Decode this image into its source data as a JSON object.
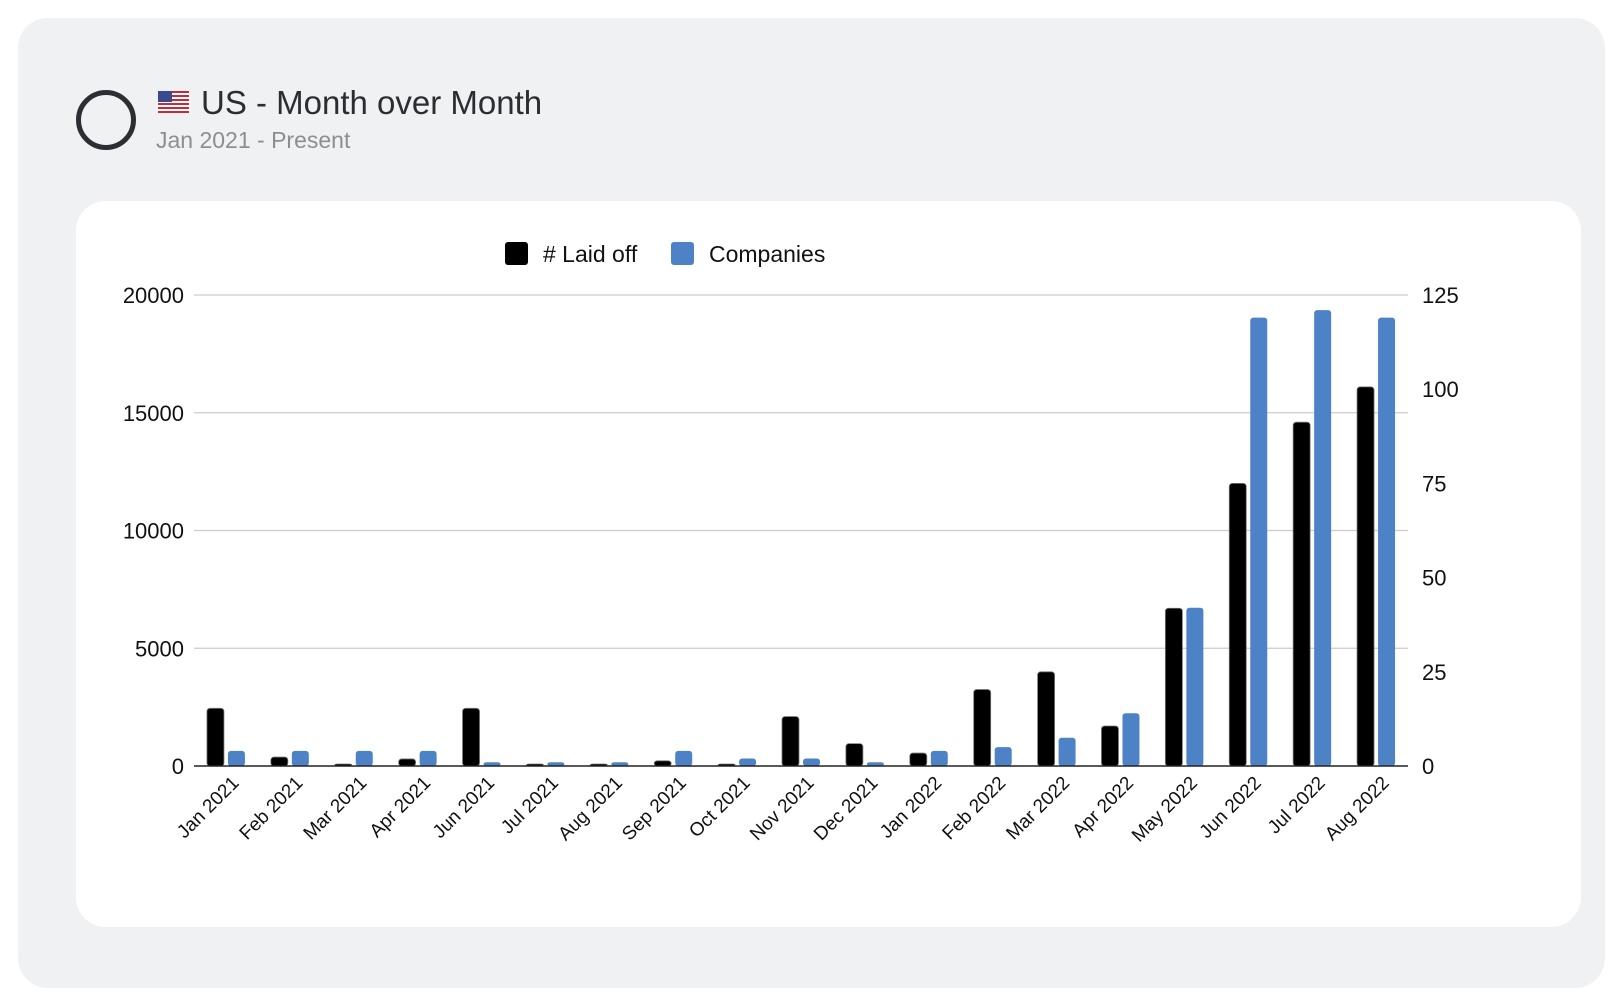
{
  "header": {
    "title": "US - Month over Month",
    "subtitle": "Jan 2021 - Present",
    "flag_icon": "us-flag-icon",
    "status_icon": "circle-outline-icon"
  },
  "colors": {
    "laid_off": "#000000",
    "companies": "#4e82c6",
    "grid": "#cccccc",
    "card_bg": "#f0f1f3"
  },
  "chart_data": {
    "type": "bar",
    "categories": [
      "Jan 2021",
      "Feb 2021",
      "Mar 2021",
      "Apr 2021",
      "Jun 2021",
      "Jul 2021",
      "Aug 2021",
      "Sep 2021",
      "Oct 2021",
      "Nov 2021",
      "Dec 2021",
      "Jan 2022",
      "Feb 2022",
      "Mar 2022",
      "Apr 2022",
      "May 2022",
      "Jun 2022",
      "Jul 2022",
      "Aug 2022"
    ],
    "series": [
      {
        "name": "# Laid off",
        "axis": "left",
        "values": [
          2450,
          380,
          60,
          300,
          2450,
          80,
          60,
          220,
          80,
          2100,
          950,
          550,
          3250,
          4000,
          1700,
          6700,
          12000,
          14600,
          16100
        ]
      },
      {
        "name": "Companies",
        "axis": "right",
        "values": [
          4,
          4,
          4,
          4,
          1,
          1,
          1,
          4,
          2,
          2,
          1,
          4,
          5,
          7.5,
          14,
          42,
          119,
          121,
          119
        ]
      }
    ],
    "left_axis": {
      "min": 0,
      "max": 20000,
      "ticks": [
        0,
        5000,
        10000,
        15000,
        20000
      ]
    },
    "right_axis": {
      "min": 0,
      "max": 125,
      "ticks": [
        0,
        25,
        50,
        75,
        100,
        125
      ]
    },
    "legend_position": "top",
    "grid": true
  }
}
